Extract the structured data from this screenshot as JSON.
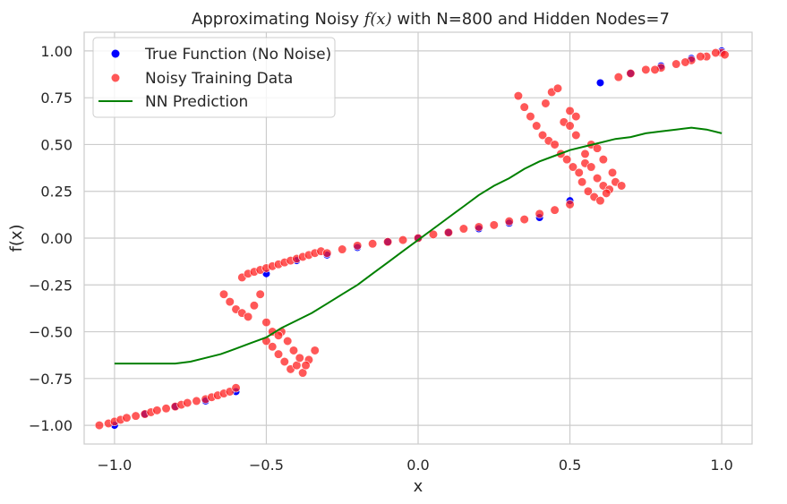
{
  "chart_data": {
    "type": "scatter",
    "title_prefix": "Approximating Noisy ",
    "title_math": "f(x)",
    "title_suffix": " with N=800 and Hidden Nodes=7",
    "xlabel": "x",
    "ylabel": "f(x)",
    "xlim": [
      -1.1,
      1.1
    ],
    "ylim": [
      -1.1,
      1.1
    ],
    "xticks": [
      -1.0,
      -0.5,
      0.0,
      0.5,
      1.0
    ],
    "xtick_labels": [
      "−1.0",
      "−0.5",
      "0.0",
      "0.5",
      "1.0"
    ],
    "yticks": [
      -1.0,
      -0.75,
      -0.5,
      -0.25,
      0.0,
      0.25,
      0.5,
      0.75,
      1.0
    ],
    "ytick_labels": [
      "−1.00",
      "−0.75",
      "−0.50",
      "−0.25",
      "0.00",
      "0.25",
      "0.50",
      "0.75",
      "1.00"
    ],
    "grid": true,
    "legend_position": "top-left",
    "colors": {
      "true": "#0000ff",
      "noisy": "#ff2020",
      "nn": "#008000",
      "grid": "#cccccc",
      "frame": "#cccccc"
    },
    "series": [
      {
        "name": "True Function (No Noise)",
        "kind": "scatter",
        "description": "points lying on y = x^3 shape near ends; near-linear through center",
        "x": [
          -1.0,
          -0.9,
          -0.8,
          -0.7,
          -0.6,
          -0.5,
          -0.4,
          -0.3,
          -0.2,
          -0.1,
          0.0,
          0.1,
          0.2,
          0.3,
          0.4,
          0.5,
          0.6,
          0.7,
          0.8,
          0.9,
          1.0
        ],
        "y": [
          -1.0,
          -0.94,
          -0.9,
          -0.87,
          -0.82,
          -0.19,
          -0.12,
          -0.09,
          -0.05,
          -0.02,
          0.0,
          0.03,
          0.05,
          0.08,
          0.11,
          0.2,
          0.83,
          0.88,
          0.92,
          0.96,
          1.0
        ]
      },
      {
        "name": "Noisy Training Data",
        "kind": "scatter",
        "x": [
          -1.05,
          -1.02,
          -1.0,
          -0.98,
          -0.96,
          -0.93,
          -0.9,
          -0.88,
          -0.86,
          -0.83,
          -0.8,
          -0.78,
          -0.76,
          -0.73,
          -0.7,
          -0.68,
          -0.66,
          -0.64,
          -0.62,
          -0.6,
          -0.58,
          -0.56,
          -0.54,
          -0.52,
          -0.5,
          -0.48,
          -0.46,
          -0.44,
          -0.42,
          -0.4,
          -0.38,
          -0.36,
          -0.34,
          -0.32,
          -0.64,
          -0.62,
          -0.6,
          -0.58,
          -0.56,
          -0.54,
          -0.52,
          -0.5,
          -0.48,
          -0.46,
          -0.44,
          -0.42,
          -0.4,
          -0.38,
          -0.36,
          -0.34,
          -0.45,
          -0.43,
          -0.41,
          -0.39,
          -0.37,
          -0.5,
          -0.48,
          -0.46,
          -0.3,
          -0.25,
          -0.2,
          -0.15,
          -0.1,
          -0.05,
          0.0,
          0.05,
          0.1,
          0.15,
          0.2,
          0.25,
          0.3,
          0.35,
          0.4,
          0.45,
          0.5,
          0.33,
          0.35,
          0.37,
          0.39,
          0.41,
          0.43,
          0.45,
          0.47,
          0.49,
          0.51,
          0.53,
          0.55,
          0.57,
          0.59,
          0.61,
          0.63,
          0.65,
          0.67,
          0.42,
          0.44,
          0.46,
          0.48,
          0.5,
          0.52,
          0.54,
          0.56,
          0.58,
          0.6,
          0.62,
          0.64,
          0.55,
          0.57,
          0.59,
          0.61,
          0.5,
          0.52,
          0.66,
          0.7,
          0.75,
          0.8,
          0.85,
          0.9,
          0.95,
          1.0,
          1.01,
          0.98,
          0.93,
          0.88,
          0.78
        ],
        "y": [
          -1.0,
          -0.99,
          -0.98,
          -0.97,
          -0.96,
          -0.95,
          -0.94,
          -0.93,
          -0.92,
          -0.91,
          -0.9,
          -0.89,
          -0.88,
          -0.87,
          -0.86,
          -0.85,
          -0.84,
          -0.83,
          -0.82,
          -0.8,
          -0.21,
          -0.19,
          -0.18,
          -0.17,
          -0.16,
          -0.15,
          -0.14,
          -0.13,
          -0.12,
          -0.11,
          -0.1,
          -0.09,
          -0.08,
          -0.07,
          -0.3,
          -0.34,
          -0.38,
          -0.4,
          -0.42,
          -0.36,
          -0.3,
          -0.55,
          -0.58,
          -0.62,
          -0.66,
          -0.7,
          -0.68,
          -0.72,
          -0.65,
          -0.6,
          -0.5,
          -0.55,
          -0.6,
          -0.64,
          -0.68,
          -0.45,
          -0.5,
          -0.52,
          -0.08,
          -0.06,
          -0.04,
          -0.03,
          -0.02,
          -0.01,
          0.0,
          0.02,
          0.03,
          0.05,
          0.06,
          0.07,
          0.09,
          0.1,
          0.13,
          0.15,
          0.18,
          0.76,
          0.7,
          0.65,
          0.6,
          0.55,
          0.52,
          0.5,
          0.45,
          0.42,
          0.38,
          0.35,
          0.4,
          0.38,
          0.32,
          0.28,
          0.26,
          0.3,
          0.28,
          0.72,
          0.78,
          0.8,
          0.62,
          0.6,
          0.55,
          0.3,
          0.25,
          0.22,
          0.2,
          0.24,
          0.35,
          0.45,
          0.5,
          0.48,
          0.42,
          0.68,
          0.65,
          0.86,
          0.88,
          0.9,
          0.91,
          0.93,
          0.95,
          0.97,
          0.99,
          0.98,
          0.99,
          0.97,
          0.94,
          0.9
        ]
      },
      {
        "name": "NN Prediction",
        "kind": "line",
        "x": [
          -1.0,
          -0.95,
          -0.9,
          -0.85,
          -0.8,
          -0.75,
          -0.7,
          -0.65,
          -0.6,
          -0.55,
          -0.5,
          -0.45,
          -0.4,
          -0.35,
          -0.3,
          -0.25,
          -0.2,
          -0.15,
          -0.1,
          -0.05,
          0.0,
          0.05,
          0.1,
          0.15,
          0.2,
          0.25,
          0.3,
          0.35,
          0.4,
          0.45,
          0.5,
          0.55,
          0.6,
          0.65,
          0.7,
          0.75,
          0.8,
          0.85,
          0.9,
          0.95,
          1.0
        ],
        "y": [
          -0.67,
          -0.67,
          -0.67,
          -0.67,
          -0.67,
          -0.66,
          -0.64,
          -0.62,
          -0.59,
          -0.56,
          -0.53,
          -0.48,
          -0.44,
          -0.4,
          -0.35,
          -0.3,
          -0.25,
          -0.19,
          -0.13,
          -0.07,
          -0.01,
          0.05,
          0.11,
          0.17,
          0.23,
          0.28,
          0.32,
          0.37,
          0.41,
          0.44,
          0.47,
          0.49,
          0.51,
          0.53,
          0.54,
          0.56,
          0.57,
          0.58,
          0.59,
          0.58,
          0.56
        ]
      }
    ]
  }
}
